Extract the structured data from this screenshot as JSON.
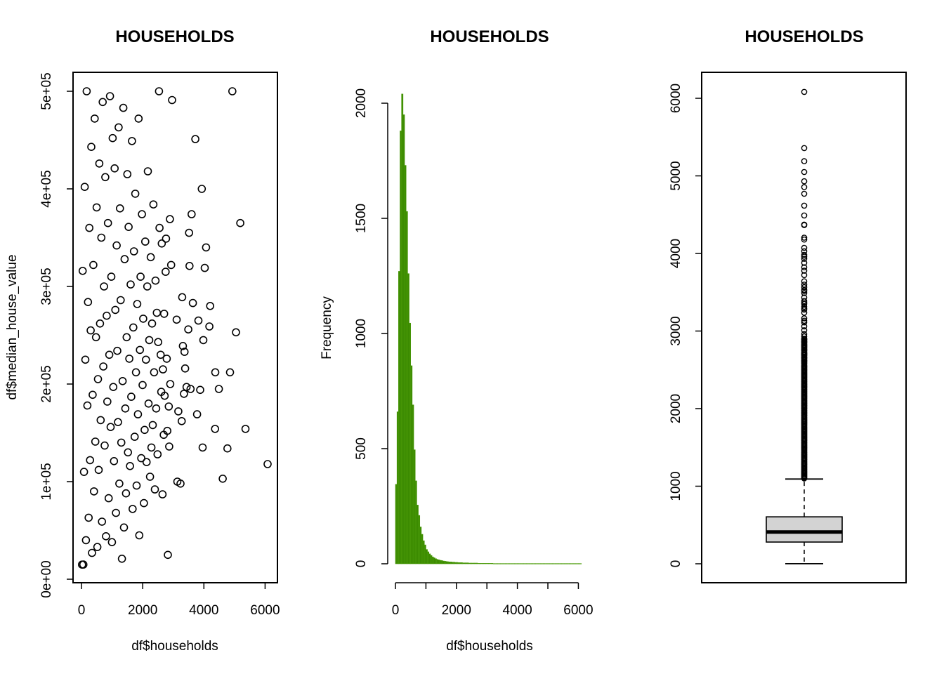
{
  "chart_data": [
    {
      "type": "scatter",
      "title": "HOUSEHOLDS",
      "xlabel": "df$households",
      "ylabel": "df$median_house_value",
      "xlim": [
        0,
        6082
      ],
      "ylim": [
        0,
        500000
      ],
      "x_ticks": [
        0,
        2000,
        4000,
        6000
      ],
      "x_tick_labels": [
        "0",
        "2000",
        "4000",
        "6000"
      ],
      "y_ticks": [
        0,
        100000,
        200000,
        300000,
        400000,
        500000
      ],
      "y_tick_labels": [
        "0e+00",
        "1e+05",
        "2e+05",
        "3e+05",
        "4e+05",
        "5e+05"
      ],
      "marker": "open-circle",
      "color": "#000000",
      "points": [
        [
          6082,
          118000
        ],
        [
          4930,
          500001
        ],
        [
          5189,
          365000
        ],
        [
          5358,
          154000
        ],
        [
          5050,
          253000
        ],
        [
          4616,
          103000
        ],
        [
          4769,
          134000
        ],
        [
          4855,
          212000
        ],
        [
          4490,
          195000
        ],
        [
          4372,
          212000
        ],
        [
          4366,
          154000
        ],
        [
          4204,
          280000
        ],
        [
          4179,
          259000
        ],
        [
          4072,
          340000
        ],
        [
          4028,
          319000
        ],
        [
          3982,
          245000
        ],
        [
          3958,
          135000
        ],
        [
          3931,
          400000
        ],
        [
          3879,
          194000
        ],
        [
          3822,
          265000
        ],
        [
          3777,
          169000
        ],
        [
          3721,
          451000
        ],
        [
          3641,
          283000
        ],
        [
          3598,
          374000
        ],
        [
          3565,
          195000
        ],
        [
          3530,
          321000
        ],
        [
          3516,
          355000
        ],
        [
          3490,
          256000
        ],
        [
          3433,
          197000
        ],
        [
          3387,
          216000
        ],
        [
          3368,
          233000
        ],
        [
          3349,
          190000
        ],
        [
          3314,
          239000
        ],
        [
          3291,
          289000
        ],
        [
          3276,
          162000
        ],
        [
          3236,
          98000
        ],
        [
          3164,
          172000
        ],
        [
          3133,
          100000
        ],
        [
          3111,
          266000
        ],
        [
          2961,
          491000
        ],
        [
          2930,
          322000
        ],
        [
          2901,
          200000
        ],
        [
          2889,
          369000
        ],
        [
          2866,
          136000
        ],
        [
          2852,
          177000
        ],
        [
          2823,
          25000
        ],
        [
          2805,
          152000
        ],
        [
          2787,
          226000
        ],
        [
          2764,
          349000
        ],
        [
          2750,
          315000
        ],
        [
          2717,
          188000
        ],
        [
          2702,
          272000
        ],
        [
          2688,
          148000
        ],
        [
          2662,
          215000
        ],
        [
          2649,
          87000
        ],
        [
          2623,
          344000
        ],
        [
          2607,
          192000
        ],
        [
          2586,
          230000
        ],
        [
          2550,
          360000
        ],
        [
          2533,
          500001
        ],
        [
          2506,
          243000
        ],
        [
          2486,
          128000
        ],
        [
          2463,
          273000
        ],
        [
          2441,
          175000
        ],
        [
          2420,
          306000
        ],
        [
          2398,
          92000
        ],
        [
          2372,
          212000
        ],
        [
          2351,
          384000
        ],
        [
          2329,
          158000
        ],
        [
          2307,
          262000
        ],
        [
          2285,
          135000
        ],
        [
          2263,
          330000
        ],
        [
          2239,
          105000
        ],
        [
          2214,
          245000
        ],
        [
          2192,
          180000
        ],
        [
          2170,
          418000
        ],
        [
          2150,
          300000
        ],
        [
          2128,
          120000
        ],
        [
          2106,
          225000
        ],
        [
          2085,
          346000
        ],
        [
          2063,
          153000
        ],
        [
          2040,
          78000
        ],
        [
          2018,
          267000
        ],
        [
          1996,
          199000
        ],
        [
          1975,
          374000
        ],
        [
          1953,
          124000
        ],
        [
          1931,
          310000
        ],
        [
          1910,
          235000
        ],
        [
          1889,
          45000
        ],
        [
          1867,
          472000
        ],
        [
          1845,
          169000
        ],
        [
          1823,
          282000
        ],
        [
          1802,
          96000
        ],
        [
          1780,
          212000
        ],
        [
          1758,
          395000
        ],
        [
          1737,
          146000
        ],
        [
          1715,
          336000
        ],
        [
          1693,
          258000
        ],
        [
          1671,
          72000
        ],
        [
          1650,
          449000
        ],
        [
          1628,
          187000
        ],
        [
          1606,
          302000
        ],
        [
          1585,
          116000
        ],
        [
          1563,
          226000
        ],
        [
          1541,
          361000
        ],
        [
          1519,
          130000
        ],
        [
          1498,
          415000
        ],
        [
          1476,
          248000
        ],
        [
          1454,
          88000
        ],
        [
          1432,
          175000
        ],
        [
          1410,
          328000
        ],
        [
          1389,
          53000
        ],
        [
          1367,
          483000
        ],
        [
          1345,
          203000
        ],
        [
          1323,
          21000
        ],
        [
          1301,
          140000
        ],
        [
          1280,
          286000
        ],
        [
          1258,
          380000
        ],
        [
          1236,
          98000
        ],
        [
          1214,
          463000
        ],
        [
          1193,
          161000
        ],
        [
          1171,
          234000
        ],
        [
          1149,
          342000
        ],
        [
          1127,
          68000
        ],
        [
          1106,
          276000
        ],
        [
          1084,
          421000
        ],
        [
          1062,
          121000
        ],
        [
          1040,
          197000
        ],
        [
          1019,
          452000
        ],
        [
          997,
          38000
        ],
        [
          975,
          310000
        ],
        [
          953,
          156000
        ],
        [
          932,
          495000
        ],
        [
          910,
          230000
        ],
        [
          888,
          83000
        ],
        [
          866,
          365000
        ],
        [
          845,
          182000
        ],
        [
          823,
          270000
        ],
        [
          801,
          44000
        ],
        [
          779,
          412000
        ],
        [
          758,
          137000
        ],
        [
          736,
          300000
        ],
        [
          714,
          218000
        ],
        [
          692,
          489000
        ],
        [
          670,
          59000
        ],
        [
          649,
          350000
        ],
        [
          627,
          163000
        ],
        [
          605,
          262000
        ],
        [
          583,
          426000
        ],
        [
          562,
          112000
        ],
        [
          540,
          205000
        ],
        [
          518,
          33000
        ],
        [
          496,
          381000
        ],
        [
          475,
          248000
        ],
        [
          453,
          141000
        ],
        [
          431,
          472000
        ],
        [
          409,
          90000
        ],
        [
          388,
          322000
        ],
        [
          366,
          189000
        ],
        [
          344,
          27000
        ],
        [
          322,
          443000
        ],
        [
          301,
          255000
        ],
        [
          279,
          122000
        ],
        [
          257,
          360000
        ],
        [
          235,
          63000
        ],
        [
          214,
          284000
        ],
        [
          192,
          178000
        ],
        [
          170,
          500001
        ],
        [
          148,
          40000
        ],
        [
          127,
          225000
        ],
        [
          105,
          402000
        ],
        [
          83,
          110000
        ],
        [
          61,
          15000
        ],
        [
          40,
          316000
        ],
        [
          18,
          14999
        ]
      ]
    },
    {
      "type": "bar",
      "subtype": "histogram",
      "title": "HOUSEHOLDS",
      "xlabel": "df$households",
      "ylabel": "Frequency",
      "xlim": [
        0,
        6082
      ],
      "ylim": [
        0,
        2050
      ],
      "x_ticks": [
        0,
        2000,
        4000,
        6000
      ],
      "x_tick_labels": [
        "0",
        "2000",
        "4000",
        "6000"
      ],
      "y_ticks": [
        0,
        500,
        1000,
        1500,
        2000
      ],
      "y_tick_labels": [
        "0",
        "500",
        "1000",
        "1500",
        "2000"
      ],
      "bin_width": 50,
      "bin_start": 0,
      "color": "#3b8a00",
      "border_color": "#4c9c0a",
      "values": [
        345,
        660,
        1270,
        1880,
        2040,
        1950,
        1730,
        1530,
        1260,
        1045,
        860,
        690,
        495,
        360,
        255,
        210,
        160,
        128,
        100,
        82,
        62,
        52,
        43,
        36,
        30,
        26,
        22,
        19,
        17,
        15,
        14,
        12,
        11,
        10,
        9,
        8,
        8,
        7,
        7,
        6,
        6,
        5,
        5,
        5,
        4,
        4,
        4,
        4,
        3,
        3,
        3,
        3,
        3,
        3,
        2,
        2,
        2,
        2,
        2,
        2,
        2,
        2,
        2,
        2,
        1,
        1,
        1,
        1,
        1,
        1,
        1,
        1,
        1,
        1,
        1,
        1,
        1,
        1,
        1,
        1,
        1,
        1,
        1,
        1,
        1,
        1,
        1,
        1,
        1,
        1,
        1,
        1,
        1,
        1,
        1,
        1,
        1,
        1,
        1,
        1,
        1,
        1,
        1,
        1,
        1,
        1,
        1,
        1,
        1,
        1,
        1,
        1,
        1,
        1,
        1,
        1,
        1,
        1,
        1,
        1,
        1,
        1
      ]
    },
    {
      "type": "boxplot",
      "title": "HOUSEHOLDS",
      "xlabel": "",
      "ylabel": "",
      "ylim": [
        0,
        6082
      ],
      "y_ticks": [
        0,
        1000,
        2000,
        3000,
        4000,
        5000,
        6000
      ],
      "y_tick_labels": [
        "0",
        "1000",
        "2000",
        "3000",
        "4000",
        "5000",
        "6000"
      ],
      "box_color": "#d3d3d3",
      "min": 1,
      "q1": 280,
      "median": 409,
      "q3": 605,
      "upper_whisker": 1092,
      "outliers": [
        6082,
        5358,
        5189,
        5050,
        4930,
        4855,
        4769,
        4616,
        4490,
        4372,
        4366,
        4204,
        4179,
        4072,
        4028,
        3982,
        3958,
        3931,
        3879,
        3822,
        3777,
        3721,
        3641,
        3598,
        3565,
        3530,
        3516,
        3490,
        3433,
        3387,
        3368,
        3349,
        3314,
        3291,
        3276,
        3236,
        3164,
        3133,
        3111,
        3060,
        3010,
        2961,
        2930,
        2901,
        2889,
        2866,
        2852,
        2823,
        2805,
        2787,
        2764,
        2750,
        2717,
        2702,
        2688,
        2662,
        2649,
        2623,
        2607,
        2586,
        2550,
        2533,
        2506,
        2486,
        2463,
        2441,
        2420,
        2398,
        2372,
        2351,
        2329,
        2307,
        2285,
        2263,
        2239,
        2214,
        2192,
        2170,
        2150,
        2128,
        2106,
        2085,
        2063,
        2040,
        2018,
        1996,
        1975,
        1953,
        1931,
        1910,
        1889,
        1867,
        1845,
        1823,
        1802,
        1780,
        1758,
        1737,
        1715,
        1693,
        1671,
        1650,
        1628,
        1606,
        1585,
        1563,
        1541,
        1519,
        1498,
        1476,
        1454,
        1432,
        1410,
        1389,
        1367,
        1345,
        1323,
        1301,
        1280,
        1258,
        1236,
        1214,
        1193,
        1171,
        1149,
        1127,
        1106
      ]
    }
  ]
}
